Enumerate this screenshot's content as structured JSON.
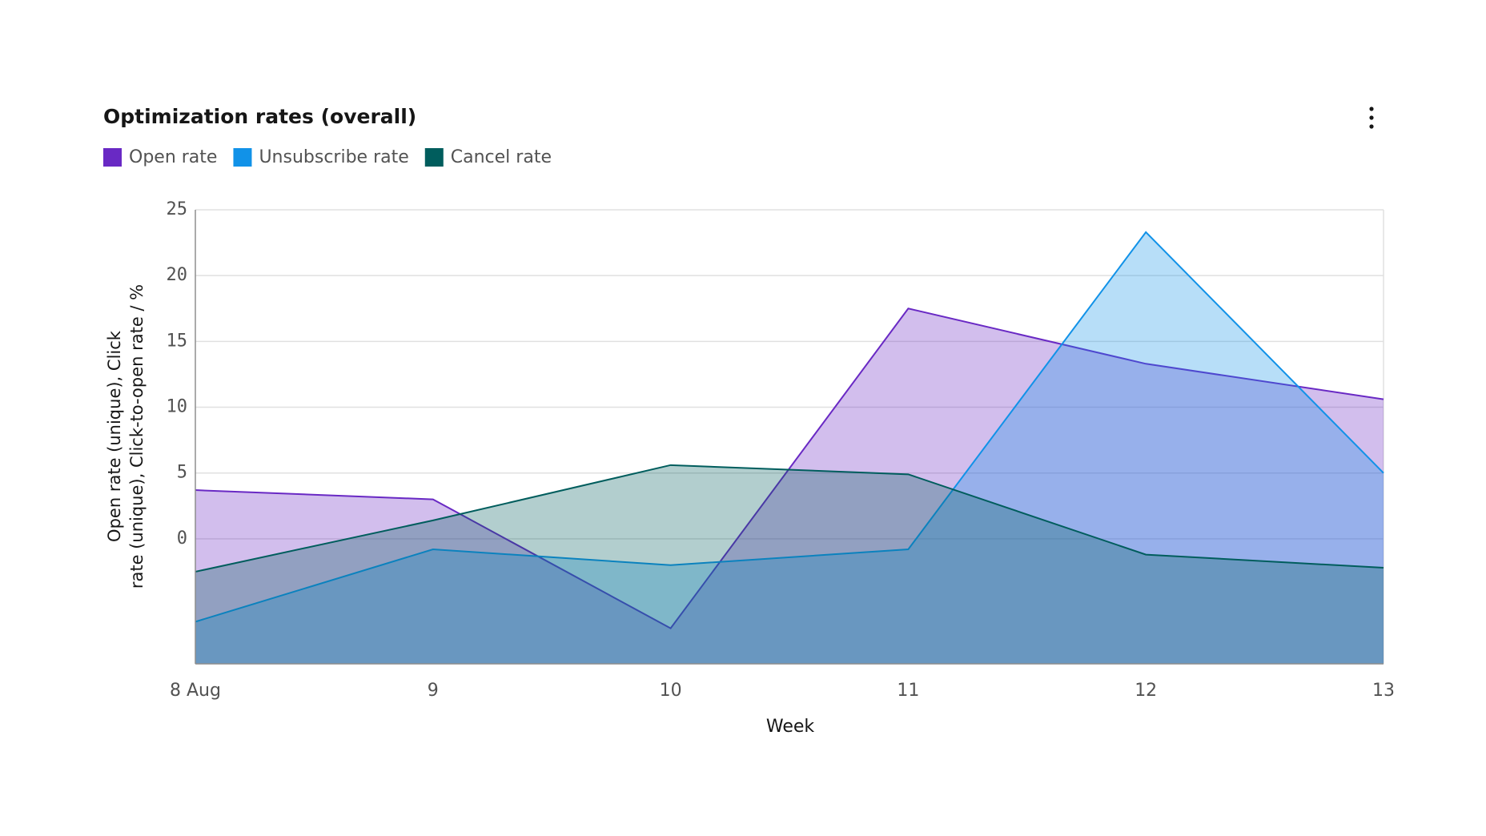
{
  "chart_data": {
    "type": "area",
    "title": "Optimization rates (overall)",
    "x_label": "Week",
    "y_label": "Open rate (unique), Click rate (unique), Click-to-open rate / %",
    "categories": [
      "8 Aug",
      "9",
      "10",
      "11",
      "12",
      "13"
    ],
    "series": [
      {
        "name": "Open rate",
        "color": "#6929c4",
        "values": [
          3.7,
          3.0,
          -6.8,
          17.5,
          13.3,
          10.6
        ]
      },
      {
        "name": "Unsubscribe rate",
        "color": "#1192e8",
        "values": [
          -6.3,
          -0.8,
          -2.0,
          -0.8,
          23.3,
          5.0
        ]
      },
      {
        "name": "Cancel rate",
        "color": "#005d5d",
        "values": [
          -2.5,
          1.4,
          5.6,
          4.9,
          -1.2,
          -2.2
        ]
      }
    ],
    "ylim": [
      -9.5,
      25
    ],
    "yticks": [
      0,
      5,
      10,
      15,
      20,
      25
    ],
    "grid": true,
    "legend": "top-left"
  }
}
